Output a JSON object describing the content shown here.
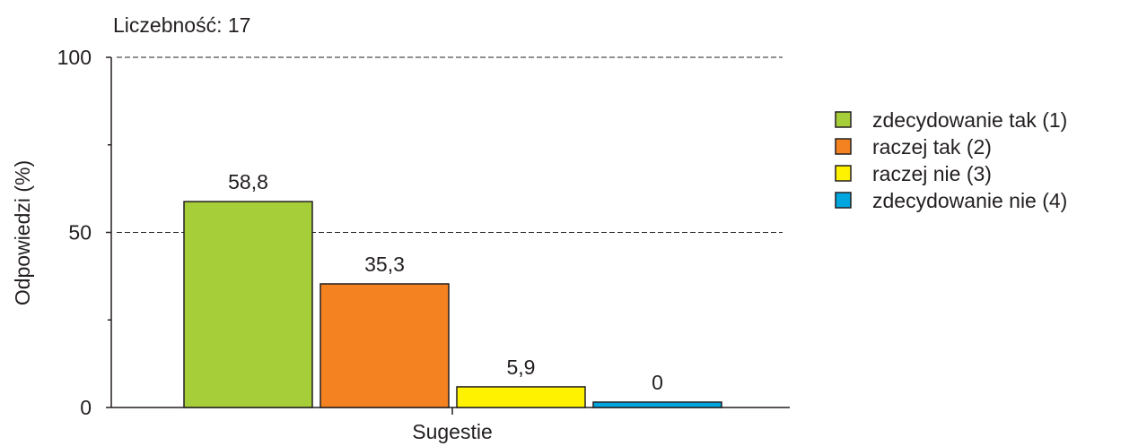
{
  "header": {
    "count_text": "Liczebność: 17"
  },
  "chart_data": {
    "type": "bar",
    "title": "",
    "xlabel": "Sugestie",
    "ylabel": "Odpowiedzi (%)",
    "ylim": [
      0,
      100
    ],
    "yticks": [
      "0",
      "50",
      "100"
    ],
    "grid": "dashed horizontal at 50 and 100",
    "legend_position": "right",
    "categories": [
      "Sugestie"
    ],
    "series": [
      {
        "name": "zdecydowanie tak (1)",
        "value": 58.8,
        "label": "58,8",
        "color": "#a6ce39"
      },
      {
        "name": "raczej tak (2)",
        "value": 35.3,
        "label": "35,3",
        "color": "#f58220"
      },
      {
        "name": "raczej nie (3)",
        "value": 5.9,
        "label": "5,9",
        "color": "#fff200"
      },
      {
        "name": "zdecydowanie nie (4)",
        "value": 0,
        "label": "0",
        "color": "#00a6e0"
      }
    ]
  }
}
